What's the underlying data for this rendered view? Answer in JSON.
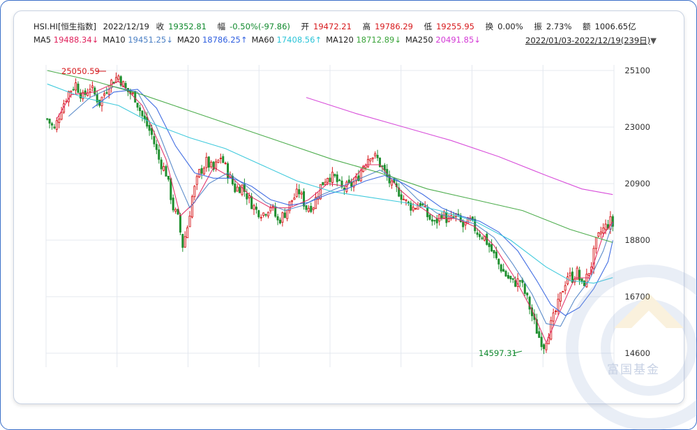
{
  "header": {
    "symbol": "HSI.HI[恒生指数]",
    "date": "2022/12/19",
    "close_label": "收",
    "close": "19352.81",
    "change_label": "幅",
    "change": "-0.50%(-97.86)",
    "open_label": "开",
    "open": "19472.21",
    "high_label": "高",
    "high": "19786.29",
    "low_label": "低",
    "low": "19255.95",
    "turnover_label": "换",
    "turnover": "0.00%",
    "amplitude_label": "振",
    "amplitude": "2.73%",
    "amount_label": "额",
    "amount": "1006.65亿",
    "range": "2022/01/03-2022/12/19(239日)"
  },
  "ma_legend": [
    {
      "name": "MA5",
      "value": "19488.34↓",
      "color": "#e0245e"
    },
    {
      "name": "MA10",
      "value": "19451.25↓",
      "color": "#4a7fc4"
    },
    {
      "name": "MA20",
      "value": "18786.25↑",
      "color": "#2f5fe0"
    },
    {
      "name": "MA60",
      "value": "17408.56↑",
      "color": "#2bc4d8"
    },
    {
      "name": "MA120",
      "value": "18712.89↓",
      "color": "#3aa43a"
    },
    {
      "name": "MA250",
      "value": "20491.85↓",
      "color": "#d43bd6"
    }
  ],
  "watermark": "富国基金",
  "chart_data": {
    "type": "candlestick",
    "title": "",
    "x_range": [
      "2022/01/03",
      "2022/12/19"
    ],
    "trading_days": 239,
    "ylim": [
      14600,
      25100
    ],
    "yticks": [
      25100,
      23000,
      20900,
      18800,
      16700,
      14600
    ],
    "grid": true,
    "annotations": [
      {
        "label": "25050.59",
        "value": 25050.59,
        "type": "high"
      },
      {
        "label": "14597.31",
        "value": 14597.31,
        "type": "low"
      }
    ],
    "close_path": [
      [
        0,
        23300
      ],
      [
        3,
        22900
      ],
      [
        6,
        23700
      ],
      [
        9,
        24300
      ],
      [
        12,
        24600
      ],
      [
        15,
        24100
      ],
      [
        18,
        24500
      ],
      [
        22,
        23900
      ],
      [
        26,
        24600
      ],
      [
        30,
        24900
      ],
      [
        33,
        24400
      ],
      [
        37,
        24100
      ],
      [
        40,
        23400
      ],
      [
        44,
        22700
      ],
      [
        47,
        21800
      ],
      [
        50,
        21300
      ],
      [
        53,
        20000
      ],
      [
        55,
        19600
      ],
      [
        57,
        18600
      ],
      [
        59,
        19300
      ],
      [
        61,
        20400
      ],
      [
        64,
        21300
      ],
      [
        67,
        21700
      ],
      [
        70,
        21400
      ],
      [
        73,
        21900
      ],
      [
        76,
        21300
      ],
      [
        79,
        20700
      ],
      [
        82,
        20800
      ],
      [
        85,
        20300
      ],
      [
        88,
        19900
      ],
      [
        91,
        19800
      ],
      [
        94,
        20100
      ],
      [
        97,
        19500
      ],
      [
        100,
        19800
      ],
      [
        103,
        20300
      ],
      [
        106,
        20600
      ],
      [
        109,
        20000
      ],
      [
        112,
        20100
      ],
      [
        115,
        20800
      ],
      [
        118,
        21200
      ],
      [
        121,
        21100
      ],
      [
        124,
        20700
      ],
      [
        127,
        20800
      ],
      [
        130,
        21000
      ],
      [
        133,
        21600
      ],
      [
        136,
        22000
      ],
      [
        139,
        21800
      ],
      [
        142,
        21300
      ],
      [
        145,
        20800
      ],
      [
        148,
        20600
      ],
      [
        151,
        20200
      ],
      [
        154,
        20000
      ],
      [
        157,
        20200
      ],
      [
        160,
        19700
      ],
      [
        163,
        19400
      ],
      [
        166,
        19800
      ],
      [
        169,
        19500
      ],
      [
        172,
        19700
      ],
      [
        175,
        19300
      ],
      [
        178,
        19500
      ],
      [
        181,
        19100
      ],
      [
        184,
        18900
      ],
      [
        187,
        18400
      ],
      [
        190,
        17900
      ],
      [
        193,
        17500
      ],
      [
        196,
        17200
      ],
      [
        199,
        17300
      ],
      [
        202,
        16600
      ],
      [
        205,
        15700
      ],
      [
        207,
        15200
      ],
      [
        209,
        14900
      ],
      [
        211,
        15400
      ],
      [
        213,
        15900
      ],
      [
        215,
        16400
      ],
      [
        217,
        17000
      ],
      [
        219,
        17500
      ],
      [
        221,
        17400
      ],
      [
        223,
        17600
      ],
      [
        225,
        17100
      ],
      [
        227,
        17400
      ],
      [
        229,
        17900
      ],
      [
        231,
        18700
      ],
      [
        233,
        19100
      ],
      [
        235,
        19300
      ],
      [
        237,
        19500
      ],
      [
        238,
        19352.81
      ]
    ],
    "series": [
      {
        "name": "MA5",
        "color": "#e0245e",
        "values": [
          [
            4,
            23300
          ],
          [
            10,
            24200
          ],
          [
            20,
            24300
          ],
          [
            30,
            24700
          ],
          [
            40,
            23800
          ],
          [
            50,
            21800
          ],
          [
            56,
            19700
          ],
          [
            62,
            20200
          ],
          [
            70,
            21500
          ],
          [
            78,
            21100
          ],
          [
            86,
            20400
          ],
          [
            94,
            20000
          ],
          [
            102,
            20000
          ],
          [
            110,
            20300
          ],
          [
            118,
            20900
          ],
          [
            126,
            20800
          ],
          [
            134,
            21600
          ],
          [
            140,
            21600
          ],
          [
            148,
            20700
          ],
          [
            156,
            20100
          ],
          [
            164,
            19600
          ],
          [
            172,
            19600
          ],
          [
            180,
            19300
          ],
          [
            188,
            18600
          ],
          [
            196,
            17500
          ],
          [
            204,
            16200
          ],
          [
            210,
            15000
          ],
          [
            216,
            16200
          ],
          [
            222,
            17400
          ],
          [
            228,
            17400
          ],
          [
            234,
            19000
          ],
          [
            238,
            19488
          ]
        ]
      },
      {
        "name": "MA10",
        "color": "#4a7fc4",
        "values": [
          [
            9,
            23400
          ],
          [
            18,
            24100
          ],
          [
            28,
            24500
          ],
          [
            38,
            24300
          ],
          [
            46,
            23000
          ],
          [
            54,
            21200
          ],
          [
            60,
            20000
          ],
          [
            68,
            20900
          ],
          [
            76,
            21300
          ],
          [
            84,
            20800
          ],
          [
            92,
            20200
          ],
          [
            100,
            19900
          ],
          [
            108,
            20100
          ],
          [
            116,
            20500
          ],
          [
            124,
            20800
          ],
          [
            132,
            21100
          ],
          [
            140,
            21400
          ],
          [
            148,
            21000
          ],
          [
            156,
            20300
          ],
          [
            164,
            19800
          ],
          [
            172,
            19600
          ],
          [
            180,
            19400
          ],
          [
            188,
            18900
          ],
          [
            196,
            17900
          ],
          [
            204,
            16800
          ],
          [
            210,
            15700
          ],
          [
            216,
            15600
          ],
          [
            222,
            16600
          ],
          [
            228,
            17300
          ],
          [
            234,
            18400
          ],
          [
            238,
            19451
          ]
        ]
      },
      {
        "name": "MA20",
        "color": "#2f5fe0",
        "values": [
          [
            19,
            23700
          ],
          [
            28,
            24300
          ],
          [
            38,
            24400
          ],
          [
            46,
            23700
          ],
          [
            54,
            22300
          ],
          [
            62,
            21300
          ],
          [
            70,
            21100
          ],
          [
            78,
            21100
          ],
          [
            86,
            20800
          ],
          [
            94,
            20300
          ],
          [
            102,
            20100
          ],
          [
            110,
            20200
          ],
          [
            118,
            20500
          ],
          [
            126,
            20700
          ],
          [
            134,
            21000
          ],
          [
            142,
            21200
          ],
          [
            150,
            20900
          ],
          [
            158,
            20500
          ],
          [
            166,
            20000
          ],
          [
            174,
            19700
          ],
          [
            182,
            19500
          ],
          [
            190,
            19100
          ],
          [
            198,
            18400
          ],
          [
            206,
            17300
          ],
          [
            212,
            16400
          ],
          [
            218,
            16000
          ],
          [
            224,
            16300
          ],
          [
            230,
            17000
          ],
          [
            236,
            18000
          ],
          [
            238,
            18786
          ]
        ]
      },
      {
        "name": "MA60",
        "color": "#2bc4d8",
        "values": [
          [
            0,
            24600
          ],
          [
            15,
            24100
          ],
          [
            30,
            23800
          ],
          [
            45,
            23100
          ],
          [
            60,
            22600
          ],
          [
            75,
            22200
          ],
          [
            90,
            21600
          ],
          [
            105,
            21000
          ],
          [
            120,
            20600
          ],
          [
            135,
            20400
          ],
          [
            150,
            20200
          ],
          [
            165,
            19900
          ],
          [
            180,
            19500
          ],
          [
            195,
            18800
          ],
          [
            210,
            17800
          ],
          [
            220,
            17300
          ],
          [
            230,
            17200
          ],
          [
            238,
            17409
          ]
        ]
      },
      {
        "name": "MA120",
        "color": "#3aa43a",
        "values": [
          [
            0,
            25100
          ],
          [
            20,
            24700
          ],
          [
            40,
            24200
          ],
          [
            60,
            23600
          ],
          [
            80,
            23000
          ],
          [
            100,
            22400
          ],
          [
            120,
            21800
          ],
          [
            140,
            21300
          ],
          [
            160,
            20700
          ],
          [
            180,
            20300
          ],
          [
            200,
            19900
          ],
          [
            220,
            19200
          ],
          [
            238,
            18713
          ]
        ]
      },
      {
        "name": "MA250",
        "color": "#d43bd6",
        "values": [
          [
            109,
            24100
          ],
          [
            130,
            23500
          ],
          [
            150,
            23000
          ],
          [
            170,
            22500
          ],
          [
            190,
            21900
          ],
          [
            210,
            21200
          ],
          [
            225,
            20700
          ],
          [
            238,
            20492
          ]
        ]
      }
    ]
  }
}
